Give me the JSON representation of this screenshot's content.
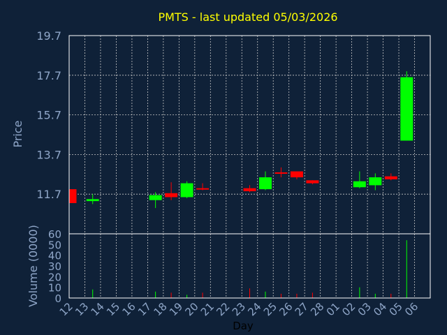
{
  "chart_data": {
    "type": "candlestick",
    "title": "PMTS - last updated 05/03/2026",
    "price_panel": {
      "ylabel": "Price",
      "ylim": [
        9.7,
        19.7
      ],
      "yticks": [
        "19.7",
        "17.7",
        "15.7",
        "13.7",
        "11.7"
      ]
    },
    "volume_panel": {
      "ylabel": "Volume (0000)",
      "ylim": [
        0,
        60
      ],
      "yticks": [
        "60",
        "50",
        "40",
        "30",
        "20",
        "10",
        "0"
      ]
    },
    "xlabel": "Day",
    "x_ticks": [
      "12",
      "13",
      "14",
      "15",
      "16",
      "17",
      "18",
      "19",
      "20",
      "21",
      "22",
      "23",
      "24",
      "25",
      "26",
      "27",
      "28",
      "01",
      "02",
      "03",
      "04",
      "05",
      "06"
    ],
    "candles": [
      {
        "day": "12",
        "open": 11.95,
        "close": 11.25,
        "high": 11.95,
        "low": 11.25,
        "volume": 0
      },
      {
        "day": "13",
        "open": 11.35,
        "close": 11.45,
        "high": 11.7,
        "low": 11.2,
        "volume": 8
      },
      {
        "day": "17",
        "open": 11.4,
        "close": 11.65,
        "high": 11.8,
        "low": 11.0,
        "volume": 6
      },
      {
        "day": "18",
        "open": 11.75,
        "close": 11.55,
        "high": 12.3,
        "low": 11.4,
        "volume": 5
      },
      {
        "day": "19",
        "open": 11.55,
        "close": 12.25,
        "high": 12.35,
        "low": 11.5,
        "volume": 3
      },
      {
        "day": "20",
        "open": 12.0,
        "close": 11.95,
        "high": 12.25,
        "low": 11.9,
        "volume": 5
      },
      {
        "day": "23",
        "open": 12.0,
        "close": 11.85,
        "high": 12.15,
        "low": 11.8,
        "volume": 9
      },
      {
        "day": "24",
        "open": 11.95,
        "close": 12.55,
        "high": 12.85,
        "low": 11.9,
        "volume": 6
      },
      {
        "day": "25",
        "open": 12.8,
        "close": 12.75,
        "high": 13.05,
        "low": 12.55,
        "volume": 4
      },
      {
        "day": "26",
        "open": 12.85,
        "close": 12.55,
        "high": 12.85,
        "low": 12.45,
        "volume": 4
      },
      {
        "day": "27",
        "open": 12.4,
        "close": 12.25,
        "high": 12.4,
        "low": 12.2,
        "volume": 5
      },
      {
        "day": "02",
        "open": 12.05,
        "close": 12.35,
        "high": 12.85,
        "low": 12.0,
        "volume": 10
      },
      {
        "day": "03",
        "open": 12.15,
        "close": 12.55,
        "high": 12.75,
        "low": 11.9,
        "volume": 4
      },
      {
        "day": "04",
        "open": 12.6,
        "close": 12.45,
        "high": 12.75,
        "low": 12.4,
        "volume": 4
      },
      {
        "day": "05",
        "open": 14.4,
        "close": 17.6,
        "high": 17.9,
        "low": 14.4,
        "volume": 54
      }
    ],
    "colors": {
      "up": "#00ff00",
      "down": "#ff0000",
      "background": "#0f2138",
      "grid": "#c8c8c8",
      "title": "#ffff00",
      "axis_text": "#8fa6c8"
    }
  }
}
